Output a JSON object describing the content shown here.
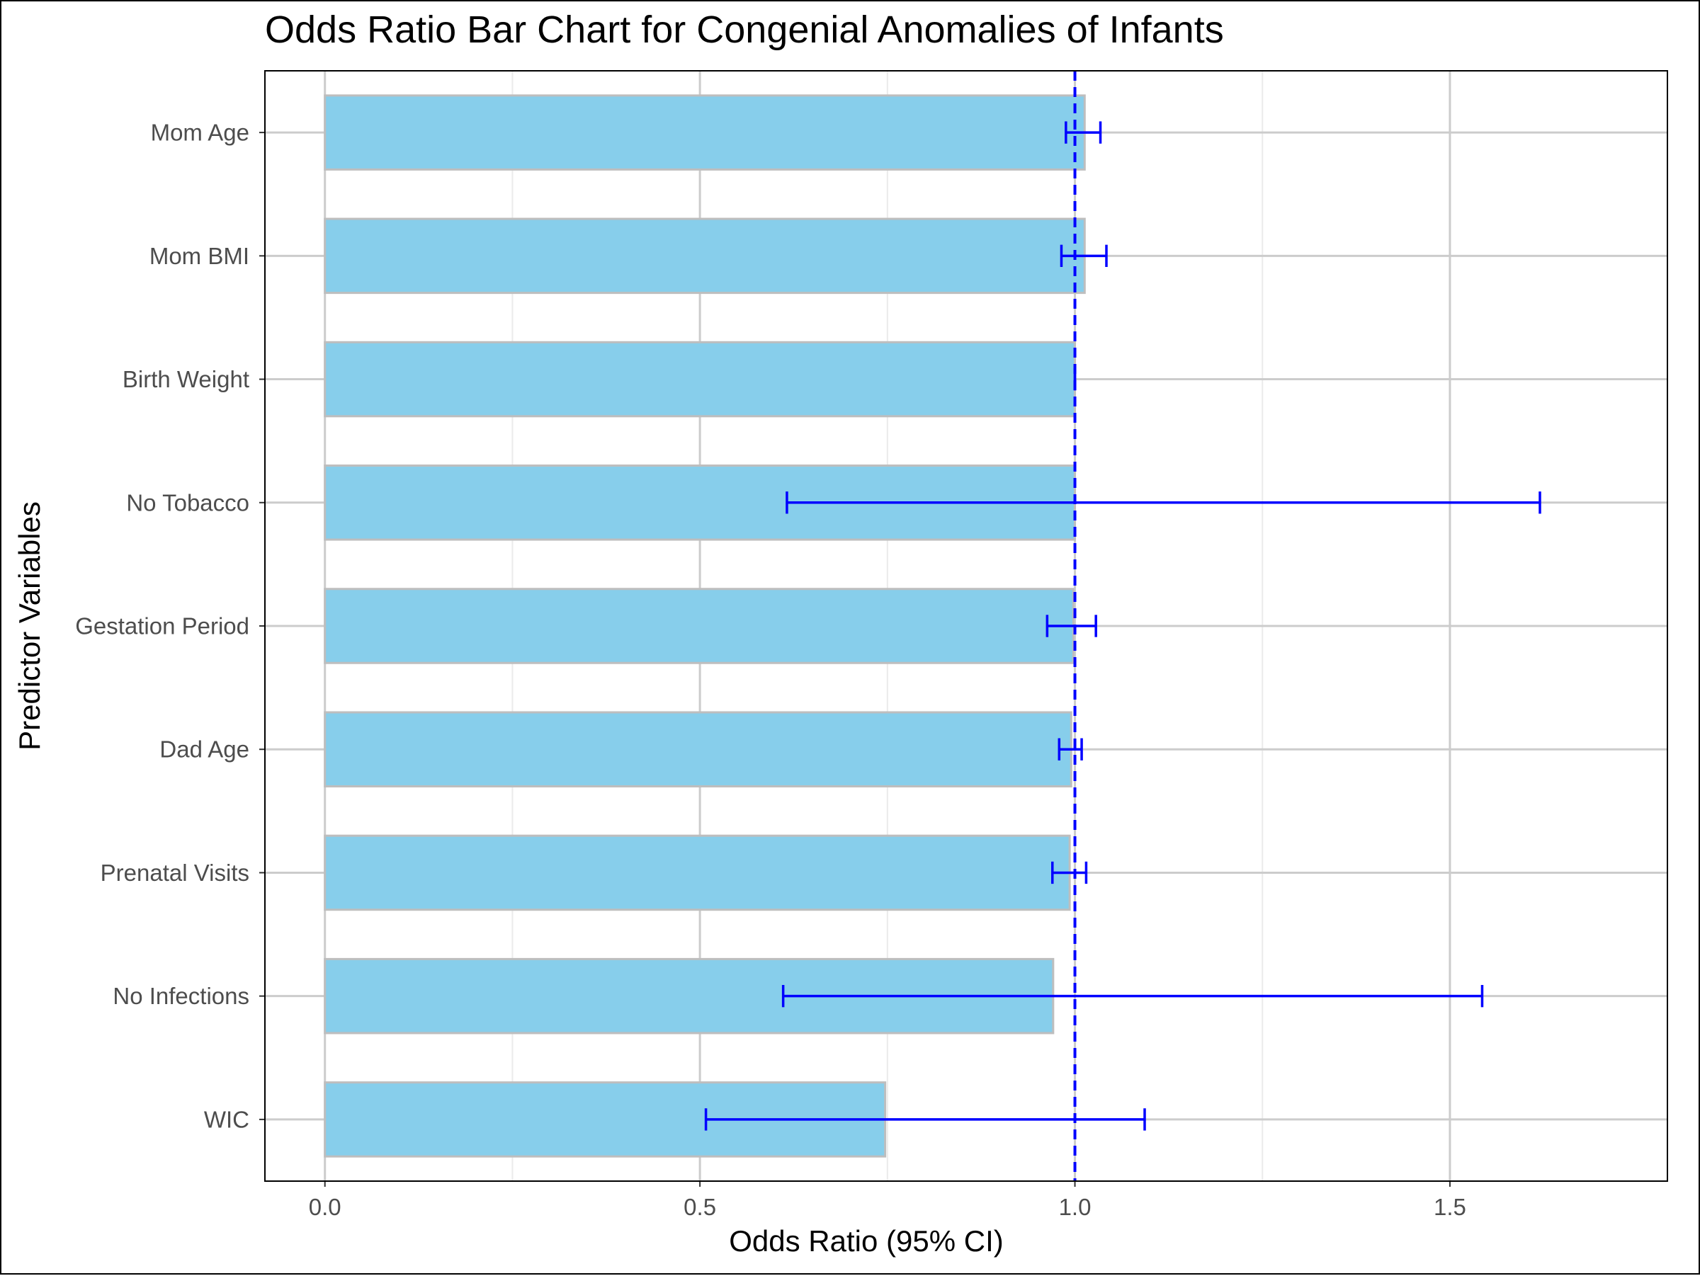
{
  "chart_data": {
    "type": "bar",
    "orientation": "horizontal",
    "title": "Odds Ratio Bar Chart for Congenial Anomalies of Infants",
    "xlabel": "Odds Ratio (95% CI)",
    "ylabel": "Predictor Variables",
    "categories": [
      "Mom Age",
      "Mom BMI",
      "Birth Weight",
      "No Tobacco",
      "Gestation Period",
      "Dad Age",
      "Prenatal Visits",
      "No Infections",
      "WIC"
    ],
    "values": [
      1.013,
      1.013,
      1.0,
      1.0,
      0.998,
      0.995,
      0.993,
      0.971,
      0.747
    ],
    "ci_lower": [
      0.988,
      0.982,
      1.0,
      0.616,
      0.963,
      0.979,
      0.97,
      0.611,
      0.508
    ],
    "ci_upper": [
      1.034,
      1.042,
      1.0,
      1.62,
      1.028,
      1.009,
      1.015,
      1.543,
      1.093
    ],
    "xlim": [
      -0.08,
      1.79
    ],
    "xticks": [
      0.0,
      0.5,
      1.0,
      1.5
    ],
    "xtick_labels": [
      "0.0",
      "0.5",
      "1.0",
      "1.5"
    ],
    "reference_line": 1.0,
    "grid": true,
    "colors": {
      "bar_fill": "#87ceeb",
      "bar_stroke": "#bebebe",
      "error_bar": "#0000ff",
      "reference_line": "#0000ff",
      "grid_major": "#cccccc",
      "grid_minor": "#ebebeb",
      "tick_text": "#4d4d4d"
    }
  }
}
